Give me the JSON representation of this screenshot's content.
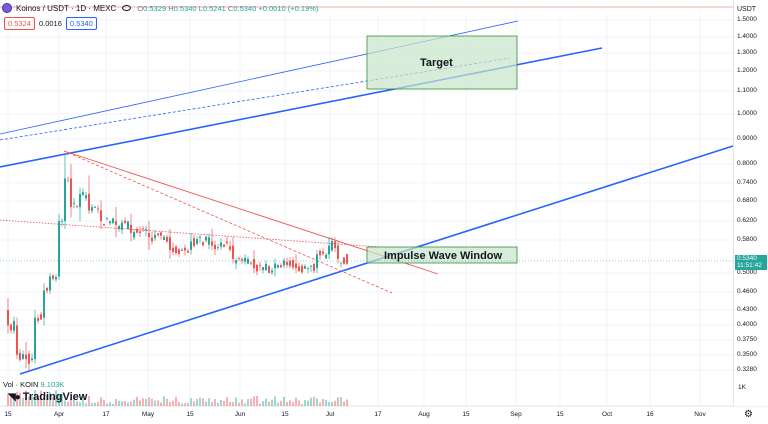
{
  "header": {
    "symbol": "Koinos / USDT · 1D · MEXC",
    "ohlc": {
      "open_label": "O",
      "open": "0.5329",
      "high_label": "H",
      "high": "0.5340",
      "low_label": "L",
      "low": "0.5241",
      "close_label": "C",
      "close": "0.5340",
      "change": "+0.0010 (+0.19%)"
    },
    "bid": "0.5324",
    "spread": "0.0016",
    "ask": "0.5340"
  },
  "price_axis": {
    "currency": "USDT",
    "ticks": [
      "1.5000",
      "1.4000",
      "1.3000",
      "1.2000",
      "1.1000",
      "1.0000",
      "0.9000",
      "0.8000",
      "0.7400",
      "0.6800",
      "0.6200",
      "0.5800",
      "0.5000",
      "0.4600",
      "0.4300",
      "0.4000",
      "0.3750",
      "0.3500",
      "0.3280"
    ],
    "last_price": "0.5340",
    "countdown": "11:51:42"
  },
  "time_axis": {
    "labels": [
      "15",
      "Apr",
      "17",
      "May",
      "15",
      "Jun",
      "15",
      "Jul",
      "17",
      "Aug",
      "15",
      "Sep",
      "15",
      "Oct",
      "16",
      "Nov"
    ]
  },
  "volume": {
    "label": "Vol · KOIN",
    "value": "9.103K",
    "axis_label": "1K"
  },
  "annotations": {
    "target": "Target",
    "impulse": "Impulse Wave Window"
  },
  "branding": {
    "name": "TradingView"
  },
  "colors": {
    "up": "#26a69a",
    "down": "#ef5350",
    "trend_blue": "#2962ff",
    "trend_red": "#ef5350",
    "box_fill": "#c8e6c9",
    "box_stroke": "#388e3c"
  },
  "chart_data": {
    "type": "candlestick",
    "y_scale": "log",
    "ylim": [
      0.32,
      1.55
    ],
    "x_range": [
      "2024-03-15",
      "2024-11-15"
    ],
    "candles_approx": [
      {
        "date": "2024-03-15",
        "o": 0.4,
        "h": 0.43,
        "l": 0.37,
        "c": 0.38
      },
      {
        "date": "2024-03-18",
        "o": 0.38,
        "h": 0.39,
        "l": 0.34,
        "c": 0.345
      },
      {
        "date": "2024-03-21",
        "o": 0.345,
        "h": 0.36,
        "l": 0.33,
        "c": 0.34
      },
      {
        "date": "2024-03-24",
        "o": 0.34,
        "h": 0.4,
        "l": 0.335,
        "c": 0.39
      },
      {
        "date": "2024-03-27",
        "o": 0.39,
        "h": 0.47,
        "l": 0.38,
        "c": 0.45
      },
      {
        "date": "2024-03-29",
        "o": 0.45,
        "h": 0.5,
        "l": 0.44,
        "c": 0.49
      },
      {
        "date": "2024-04-01",
        "o": 0.49,
        "h": 0.64,
        "l": 0.48,
        "c": 0.62
      },
      {
        "date": "2024-04-03",
        "o": 0.62,
        "h": 0.84,
        "l": 0.6,
        "c": 0.75
      },
      {
        "date": "2024-04-05",
        "o": 0.75,
        "h": 0.8,
        "l": 0.63,
        "c": 0.66
      },
      {
        "date": "2024-04-08",
        "o": 0.66,
        "h": 0.72,
        "l": 0.62,
        "c": 0.7
      },
      {
        "date": "2024-04-11",
        "o": 0.7,
        "h": 0.76,
        "l": 0.64,
        "c": 0.65
      },
      {
        "date": "2024-04-15",
        "o": 0.65,
        "h": 0.68,
        "l": 0.6,
        "c": 0.62
      },
      {
        "date": "2024-04-20",
        "o": 0.62,
        "h": 0.66,
        "l": 0.58,
        "c": 0.61
      },
      {
        "date": "2024-04-25",
        "o": 0.61,
        "h": 0.64,
        "l": 0.57,
        "c": 0.59
      },
      {
        "date": "2024-05-01",
        "o": 0.59,
        "h": 0.62,
        "l": 0.55,
        "c": 0.58
      },
      {
        "date": "2024-05-08",
        "o": 0.58,
        "h": 0.6,
        "l": 0.53,
        "c": 0.55
      },
      {
        "date": "2024-05-15",
        "o": 0.55,
        "h": 0.59,
        "l": 0.54,
        "c": 0.57
      },
      {
        "date": "2024-05-22",
        "o": 0.57,
        "h": 0.6,
        "l": 0.55,
        "c": 0.56
      },
      {
        "date": "2024-05-29",
        "o": 0.56,
        "h": 0.58,
        "l": 0.52,
        "c": 0.53
      },
      {
        "date": "2024-06-05",
        "o": 0.53,
        "h": 0.55,
        "l": 0.5,
        "c": 0.51
      },
      {
        "date": "2024-06-12",
        "o": 0.51,
        "h": 0.53,
        "l": 0.49,
        "c": 0.52
      },
      {
        "date": "2024-06-19",
        "o": 0.52,
        "h": 0.54,
        "l": 0.5,
        "c": 0.51
      },
      {
        "date": "2024-06-26",
        "o": 0.51,
        "h": 0.55,
        "l": 0.5,
        "c": 0.54
      },
      {
        "date": "2024-06-30",
        "o": 0.54,
        "h": 0.58,
        "l": 0.53,
        "c": 0.56
      },
      {
        "date": "2024-07-03",
        "o": 0.56,
        "h": 0.57,
        "l": 0.52,
        "c": 0.53
      },
      {
        "date": "2024-07-07",
        "o": 0.53,
        "h": 0.55,
        "l": 0.52,
        "c": 0.534
      }
    ]
  }
}
